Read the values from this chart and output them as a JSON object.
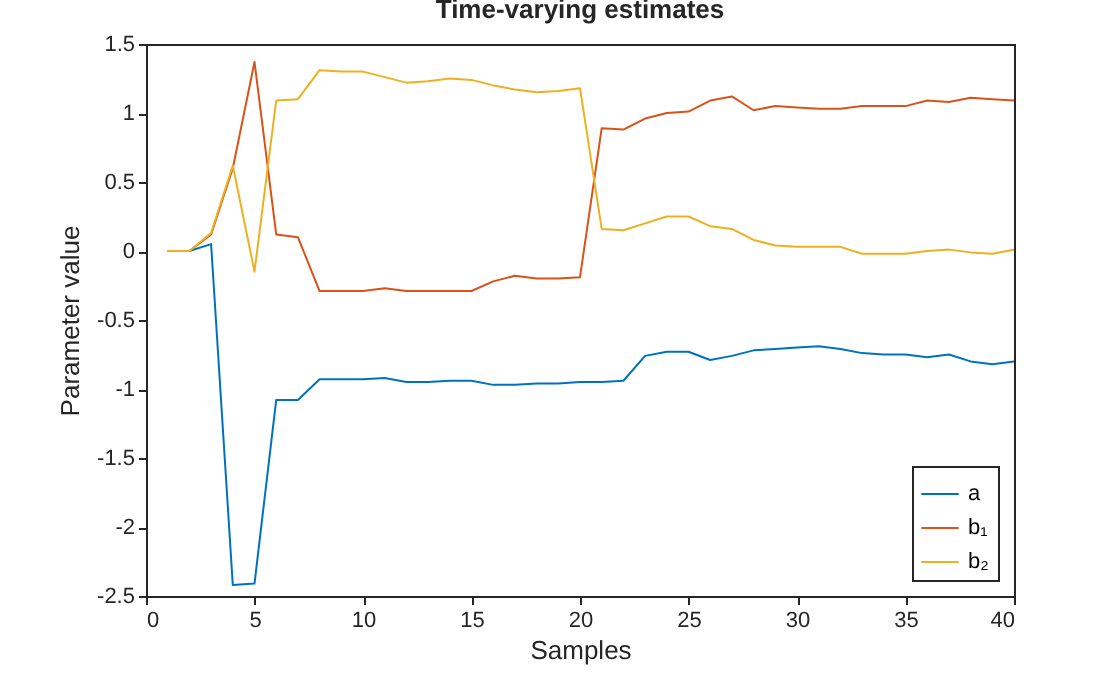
{
  "chart_data": {
    "type": "line",
    "title": "Time-varying estimates",
    "xlabel": "Samples",
    "ylabel": "Parameter value",
    "x": [
      1,
      2,
      3,
      4,
      5,
      6,
      7,
      8,
      9,
      10,
      11,
      12,
      13,
      14,
      15,
      16,
      17,
      18,
      19,
      20,
      21,
      22,
      23,
      24,
      25,
      26,
      27,
      28,
      29,
      30,
      31,
      32,
      33,
      34,
      35,
      36,
      37,
      38,
      39,
      40
    ],
    "series": [
      {
        "name": "a",
        "color": "#0072bd",
        "values": [
          0,
          0,
          0.05,
          -2.42,
          -2.41,
          -1.08,
          -1.08,
          -0.93,
          -0.93,
          -0.93,
          -0.92,
          -0.95,
          -0.95,
          -0.94,
          -0.94,
          -0.97,
          -0.97,
          -0.96,
          -0.96,
          -0.95,
          -0.95,
          -0.94,
          -0.76,
          -0.73,
          -0.73,
          -0.79,
          -0.76,
          -0.72,
          -0.71,
          -0.7,
          -0.69,
          -0.71,
          -0.74,
          -0.75,
          -0.75,
          -0.77,
          -0.75,
          -0.8,
          -0.82,
          -0.8
        ]
      },
      {
        "name": "b₁",
        "color": "#d95319",
        "values": [
          0,
          0,
          0.12,
          0.6,
          1.37,
          0.12,
          0.1,
          -0.29,
          -0.29,
          -0.29,
          -0.27,
          -0.29,
          -0.29,
          -0.29,
          -0.29,
          -0.22,
          -0.18,
          -0.2,
          -0.2,
          -0.19,
          0.89,
          0.88,
          0.96,
          1.0,
          1.01,
          1.09,
          1.12,
          1.02,
          1.05,
          1.04,
          1.03,
          1.03,
          1.05,
          1.05,
          1.05,
          1.09,
          1.08,
          1.11,
          1.1,
          1.09
        ]
      },
      {
        "name": "b₂",
        "color": "#edb120",
        "values": [
          0,
          0,
          0.13,
          0.62,
          -0.15,
          1.09,
          1.1,
          1.31,
          1.3,
          1.3,
          1.26,
          1.22,
          1.23,
          1.25,
          1.24,
          1.2,
          1.17,
          1.15,
          1.16,
          1.18,
          0.16,
          0.15,
          0.2,
          0.25,
          0.25,
          0.18,
          0.16,
          0.08,
          0.04,
          0.03,
          0.03,
          0.03,
          -0.02,
          -0.02,
          -0.02,
          0,
          0.01,
          -0.01,
          -0.02,
          0.01
        ]
      }
    ],
    "xlim": [
      0,
      40
    ],
    "xticks": [
      0,
      5,
      10,
      15,
      20,
      25,
      30,
      35,
      40
    ],
    "ylim": [
      -2.5,
      1.5
    ],
    "yticks": [
      -2.5,
      -2,
      -1.5,
      -1,
      -0.5,
      0,
      0.5,
      1,
      1.5
    ],
    "grid": false,
    "legend": "bottom right",
    "marker": "none",
    "line_style": "solid"
  }
}
